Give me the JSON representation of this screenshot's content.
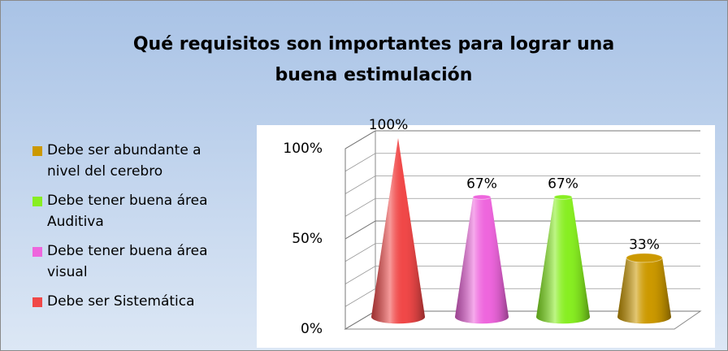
{
  "chart_data": {
    "type": "cone",
    "title": "Qué requisitos son importantes para lograr una buena estimulación",
    "series": [
      {
        "name": "Debe ser Sistemática",
        "color": "#f04848",
        "values": [
          100
        ],
        "value_labels": [
          "100%"
        ]
      },
      {
        "name": "Debe tener buena área visual",
        "color": "#ee66dd",
        "values": [
          67
        ],
        "value_labels": [
          "67%"
        ]
      },
      {
        "name": "Debe tener buena área Auditiva",
        "color": "#88ee22",
        "values": [
          67
        ],
        "value_labels": [
          "67%"
        ]
      },
      {
        "name": "Debe ser abundante a nivel del cerebro",
        "color": "#cc9900",
        "values": [
          33
        ],
        "value_labels": [
          "33%"
        ]
      }
    ],
    "ylim": [
      0,
      100
    ],
    "yticks": [
      {
        "value": 0,
        "label": "0%"
      },
      {
        "value": 50,
        "label": "50%"
      },
      {
        "value": 100,
        "label": "100%"
      }
    ],
    "grid": true,
    "legend": "left"
  }
}
